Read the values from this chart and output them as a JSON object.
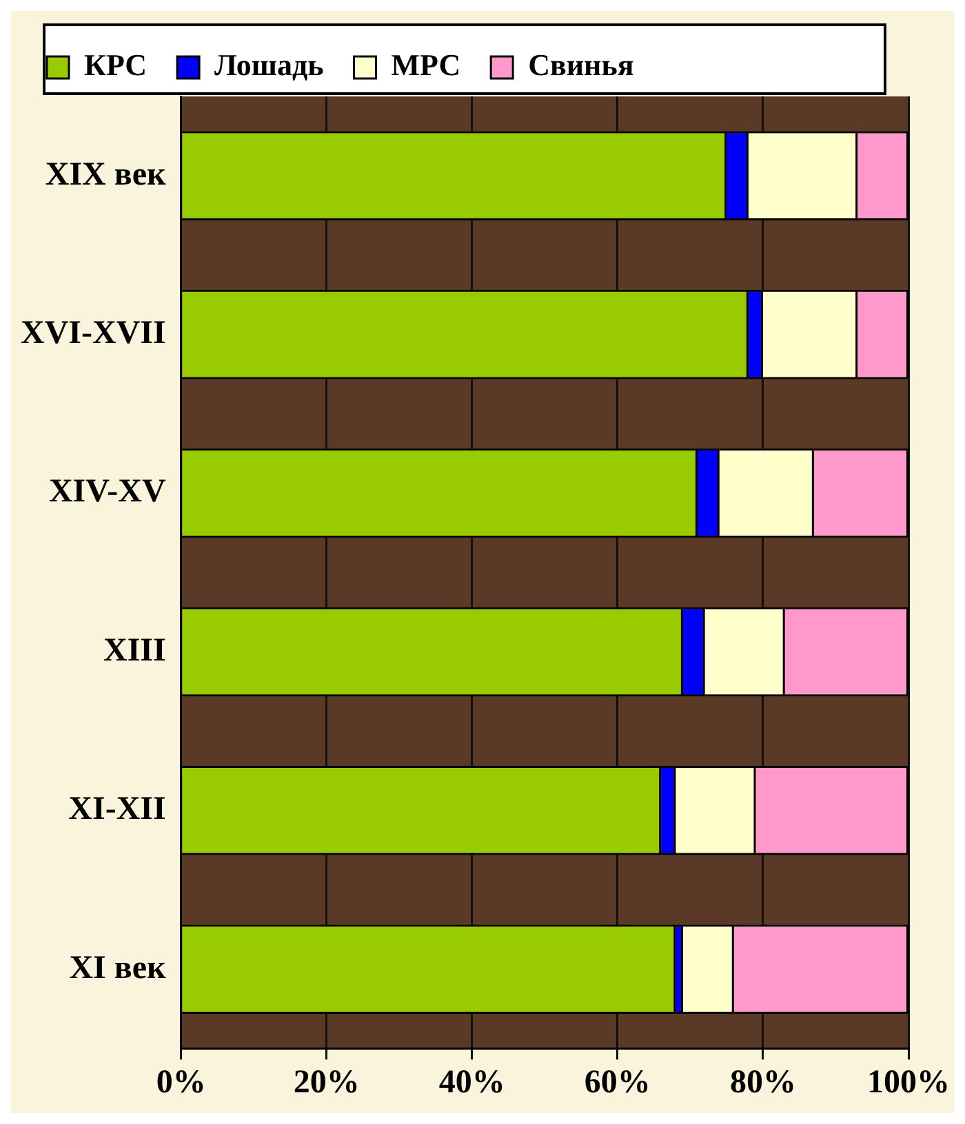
{
  "chart_data": {
    "type": "bar",
    "orientation": "horizontal",
    "stacked": true,
    "categories": [
      "XIX век",
      "XVI-XVII",
      "XIV-XV",
      "XIII",
      "XI-XII",
      "XI век"
    ],
    "series": [
      {
        "name": "КРС",
        "color": "#99cc00",
        "values": [
          75,
          78,
          71,
          69,
          66,
          68
        ]
      },
      {
        "name": "Лошадь",
        "color": "#0000ff",
        "values": [
          3,
          2,
          3,
          3,
          2,
          1
        ]
      },
      {
        "name": "МРС",
        "color": "#ffffcc",
        "values": [
          15,
          13,
          13,
          11,
          11,
          7
        ]
      },
      {
        "name": "Свинья",
        "color": "#ff99cc",
        "values": [
          7,
          7,
          13,
          17,
          21,
          24
        ]
      }
    ],
    "xlim": [
      0,
      100
    ],
    "xticks": [
      {
        "value": 0,
        "label": "0%"
      },
      {
        "value": 20,
        "label": "20%"
      },
      {
        "value": 40,
        "label": "40%"
      },
      {
        "value": 60,
        "label": "60%"
      },
      {
        "value": 80,
        "label": "80%"
      },
      {
        "value": 100,
        "label": "100%"
      }
    ],
    "grid": "x",
    "legend": "top"
  }
}
